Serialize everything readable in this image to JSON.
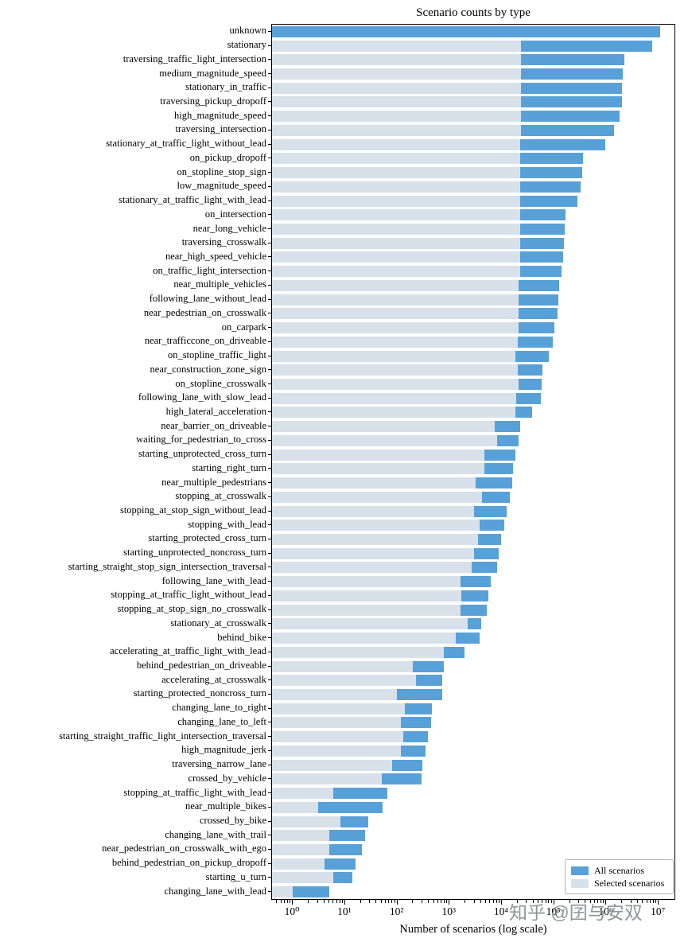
{
  "watermark": "知乎 @囝与安双",
  "chart_data": {
    "type": "bar",
    "orientation": "horizontal",
    "title": "Scenario counts by type",
    "xlabel": "Number of scenarios (log scale)",
    "ylabel": "",
    "x_scale": "log",
    "xlim": [
      0.4,
      20000000
    ],
    "x_tick_exponents": [
      0,
      1,
      2,
      3,
      4,
      5,
      6,
      7
    ],
    "x_tick_labels": [
      "10⁰",
      "10¹",
      "10²",
      "10³",
      "10⁴",
      "10⁵",
      "10⁶",
      "10⁷"
    ],
    "grid": false,
    "legend_position": "lower right",
    "categories": [
      "unknown",
      "stationary",
      "traversing_traffic_light_intersection",
      "medium_magnitude_speed",
      "stationary_in_traffic",
      "traversing_pickup_dropoff",
      "high_magnitude_speed",
      "traversing_intersection",
      "stationary_at_traffic_light_without_lead",
      "on_pickup_dropoff",
      "on_stopline_stop_sign",
      "low_magnitude_speed",
      "stationary_at_traffic_light_with_lead",
      "on_intersection",
      "near_long_vehicle",
      "traversing_crosswalk",
      "near_high_speed_vehicle",
      "on_traffic_light_intersection",
      "near_multiple_vehicles",
      "following_lane_without_lead",
      "near_pedestrian_on_crosswalk",
      "on_carpark",
      "near_trafficcone_on_driveable",
      "on_stopline_traffic_light",
      "near_construction_zone_sign",
      "on_stopline_crosswalk",
      "following_lane_with_slow_lead",
      "high_lateral_acceleration",
      "near_barrier_on_driveable",
      "waiting_for_pedestrian_to_cross",
      "starting_unprotected_cross_turn",
      "starting_right_turn",
      "near_multiple_pedestrians",
      "stopping_at_crosswalk",
      "stopping_at_stop_sign_without_lead",
      "stopping_with_lead",
      "starting_protected_cross_turn",
      "starting_unprotected_noncross_turn",
      "starting_straight_stop_sign_intersection_traversal",
      "following_lane_with_lead",
      "stopping_at_traffic_light_without_lead",
      "stopping_at_stop_sign_no_crosswalk",
      "stationary_at_crosswalk",
      "behind_bike",
      "accelerating_at_traffic_light_with_lead",
      "behind_pedestrian_on_driveable",
      "accelerating_at_crosswalk",
      "starting_protected_noncross_turn",
      "changing_lane_to_right",
      "changing_lane_to_left",
      "starting_straight_traffic_light_intersection_traversal",
      "high_magnitude_jerk",
      "traversing_narrow_lane",
      "crossed_by_vehicle",
      "stopping_at_traffic_light_with_lead",
      "near_multiple_bikes",
      "crossed_by_bike",
      "changing_lane_with_trail",
      "near_pedestrian_on_crosswalk_with_ego",
      "behind_pedestrian_on_pickup_dropoff",
      "starting_u_turn",
      "changing_lane_with_lead"
    ],
    "series": [
      {
        "name": "All scenarios",
        "color": "#57a1d8",
        "values": [
          10500000,
          7400000,
          2200000,
          2050000,
          2000000,
          1980000,
          1800000,
          1400000,
          950000,
          360000,
          340000,
          320000,
          280000,
          165000,
          160000,
          152000,
          148000,
          138000,
          125000,
          120000,
          115000,
          100000,
          93000,
          78000,
          59000,
          57000,
          56000,
          38000,
          22000,
          21000,
          18000,
          16500,
          16000,
          14000,
          12500,
          11000,
          9800,
          8800,
          8200,
          6200,
          5600,
          5200,
          4000,
          3700,
          1900,
          780,
          725,
          720,
          465,
          435,
          390,
          350,
          300,
          295,
          65,
          52,
          28,
          24,
          21,
          16,
          14,
          5
        ]
      },
      {
        "name": "Selected scenarios",
        "color": "#d8e1ea",
        "values": [
          0,
          23000,
          23000,
          23000,
          23000,
          23000,
          23000,
          23000,
          22000,
          22000,
          22000,
          22000,
          22000,
          22000,
          22000,
          22000,
          22000,
          22000,
          21000,
          21000,
          21000,
          21000,
          20000,
          18000,
          20000,
          21000,
          19000,
          18000,
          7400,
          8200,
          4700,
          4700,
          3100,
          4100,
          2900,
          3700,
          3500,
          2900,
          2600,
          1600,
          1700,
          1600,
          2200,
          1300,
          780,
          195,
          230,
          98,
          140,
          115,
          128,
          115,
          80,
          50,
          6,
          3,
          8,
          5,
          5,
          4,
          6,
          1
        ]
      }
    ]
  }
}
